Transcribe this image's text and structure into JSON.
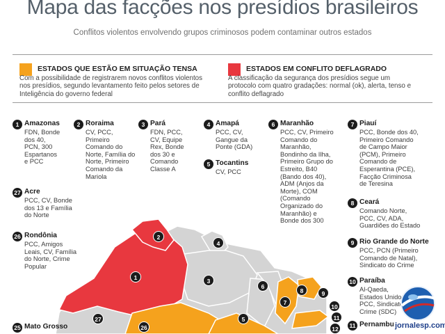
{
  "header": {
    "title": "Mapa das facções nos presídios brasileiros",
    "subtitle": "Conflitos violentos envolvendo grupos criminosos podem contaminar outros estados"
  },
  "legend": {
    "tense": {
      "color": "#f5a21d",
      "label": "ESTADOS QUE ESTÃO EM SITUAÇÃO TENSA",
      "description": "Com a possibilidade de registrarem novos conflitos violentos nos presídios, segundo levantamento feito pelos setores de Inteligência do governo federal"
    },
    "conflict": {
      "color": "#e8383f",
      "label": "ESTADOS EM CONFLITO DEFLAGRADO",
      "description": "A classificação da segurança dos presídios segue um protocolo com quatro gradações: normal (ok), alerta, tenso e conflito deflagrado"
    }
  },
  "states": [
    {
      "n": "1",
      "name": "Amazonas",
      "text": "FDN, Bonde\ndos 40,\nPCN, 300\nEspartanos\ne PCC"
    },
    {
      "n": "2",
      "name": "Roraima",
      "text": "CV, PCC,\nPrimeiro\nComando do\nNorte, Família do\nNorte, Primeiro\nComando da\nMariola"
    },
    {
      "n": "3",
      "name": "Pará",
      "text": "FDN, PCC,\nCV, Equipe\nRex, Bonde\ndos 30 e\nComando\nClasse A"
    },
    {
      "n": "4",
      "name": "Amapá",
      "text": "PCC, CV,\nGangue da\nPonte (GDA)"
    },
    {
      "n": "5",
      "name": "Tocantins",
      "text": "CV, PCC"
    },
    {
      "n": "6",
      "name": "Maranhão",
      "text": "PCC, CV, Primeiro\nComando do\nMaranhão,\nBondinho da Ilha,\nPrimeiro Grupo do\nEstreito, B40\n(Bando dos 40),\nADM (Anjos da\nMorte), COM\n(Comando\nOrganizado do\nMaranhão) e\nBonde dos 300"
    },
    {
      "n": "7",
      "name": "Piauí",
      "text": "PCC, Bonde dos 40,\nPrimeiro Comando\nde Campo Maior\n(PCM), Primeiro\nComando de\nEsperantina (PCE),\nFacção Criminosa\nde Teresina"
    },
    {
      "n": "27",
      "name": "Acre",
      "text": "PCC, CV, Bonde\ndos 13 e Família\ndo Norte"
    },
    {
      "n": "8",
      "name": "Ceará",
      "text": "Comando Norte,\nPCC, CV, ADA,\nGuardiões do Estado"
    },
    {
      "n": "26",
      "name": "Rondônia",
      "text": "PCC, Amigos\nLeais, CV, Família\ndo Norte, Crime\nPopular"
    },
    {
      "n": "9",
      "name": "Rio Grande do Norte",
      "text": "PCC, PCN (Primeiro\nComando de Natal),\nSindicato do Crime"
    },
    {
      "n": "10",
      "name": "Paraíba",
      "text": "Al-Qaeda,\nEstados Unidos,\nPCC, Sindicato do\nCrime (SDC)"
    },
    {
      "n": "25",
      "name": "Mato Grosso",
      "text": ""
    },
    {
      "n": "11",
      "name": "Pernambuco",
      "text": ""
    }
  ],
  "map_pins": [
    "1",
    "2",
    "3",
    "4",
    "5",
    "6",
    "7",
    "8",
    "9",
    "10",
    "11",
    "12",
    "26",
    "27"
  ],
  "colors": {
    "neutral": "#d4d4d4",
    "border": "#ffffff"
  },
  "credit": "jornalesp.com"
}
